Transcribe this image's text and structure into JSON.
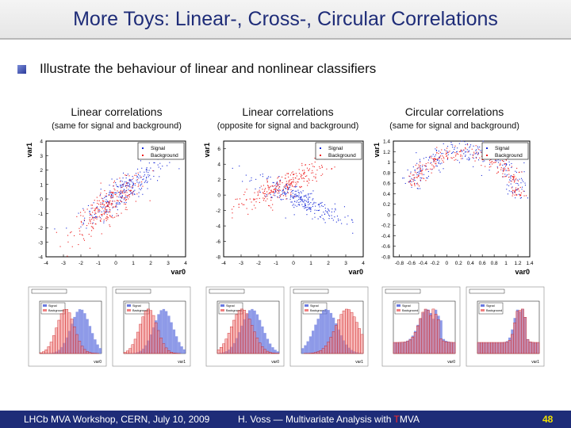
{
  "slide": {
    "title": "More Toys: Linear-, Cross-, Circular Correlations",
    "bullet": "Illustrate the behaviour of linear and nonlinear classifiers"
  },
  "panels": [
    {
      "heading": "Linear correlations",
      "subheading": "(same for signal and background)",
      "x_label": "var0",
      "y_label": "var1",
      "legend": [
        "Signal",
        "Background"
      ],
      "x_ticks": [
        "-4",
        "-3",
        "-2",
        "-1",
        "0",
        "1",
        "2",
        "3",
        "4"
      ],
      "y_ticks": [
        "4",
        "3",
        "2",
        "1",
        "0",
        "-1",
        "-2",
        "-3",
        "-4"
      ]
    },
    {
      "heading": "Linear correlations",
      "subheading": "(opposite for signal and background)",
      "x_label": "var0",
      "y_label": "var1",
      "legend": [
        "Signal",
        "Background"
      ],
      "x_ticks": [
        "-4",
        "-3",
        "-2",
        "-1",
        "0",
        "1",
        "2",
        "3",
        "4"
      ],
      "y_ticks": [
        "6",
        "4",
        "2",
        "0",
        "-2",
        "-4",
        "-6",
        "-8"
      ]
    },
    {
      "heading": "Circular correlations",
      "subheading": "(same for signal and background)",
      "x_label": "var0",
      "y_label": "var1",
      "legend": [
        "Signal",
        "Background"
      ],
      "x_ticks": [
        "-0.8",
        "-0.6",
        "-0.4",
        "-0.2",
        "0",
        "0.2",
        "0.4",
        "0.6",
        "0.8",
        "1",
        "1.2",
        "1.4"
      ],
      "y_ticks": [
        "1.4",
        "1.2",
        "1",
        "0.8",
        "0.6",
        "0.4",
        "0.2",
        "0",
        "-0.2",
        "-0.4",
        "-0.6",
        "-0.8"
      ]
    }
  ],
  "histogram_legend": [
    "Signal",
    "Background"
  ],
  "histogram_xlabels": [
    "var0",
    "var1",
    "var0",
    "var1",
    "var0",
    "var1"
  ],
  "colors": {
    "title": "#1e2c78",
    "footer": "#1e2c78",
    "signal": "#1a2cd8",
    "background": "#ee1c1c",
    "page_number": "#f0e000"
  },
  "footer": {
    "left": "LHCb MVA Workshop, CERN, July 10, 2009",
    "mid_prefix": "H. Voss ― Multivariate Analysis with ",
    "mid_t": "T",
    "mid_suffix": "MVA",
    "page": "48"
  }
}
